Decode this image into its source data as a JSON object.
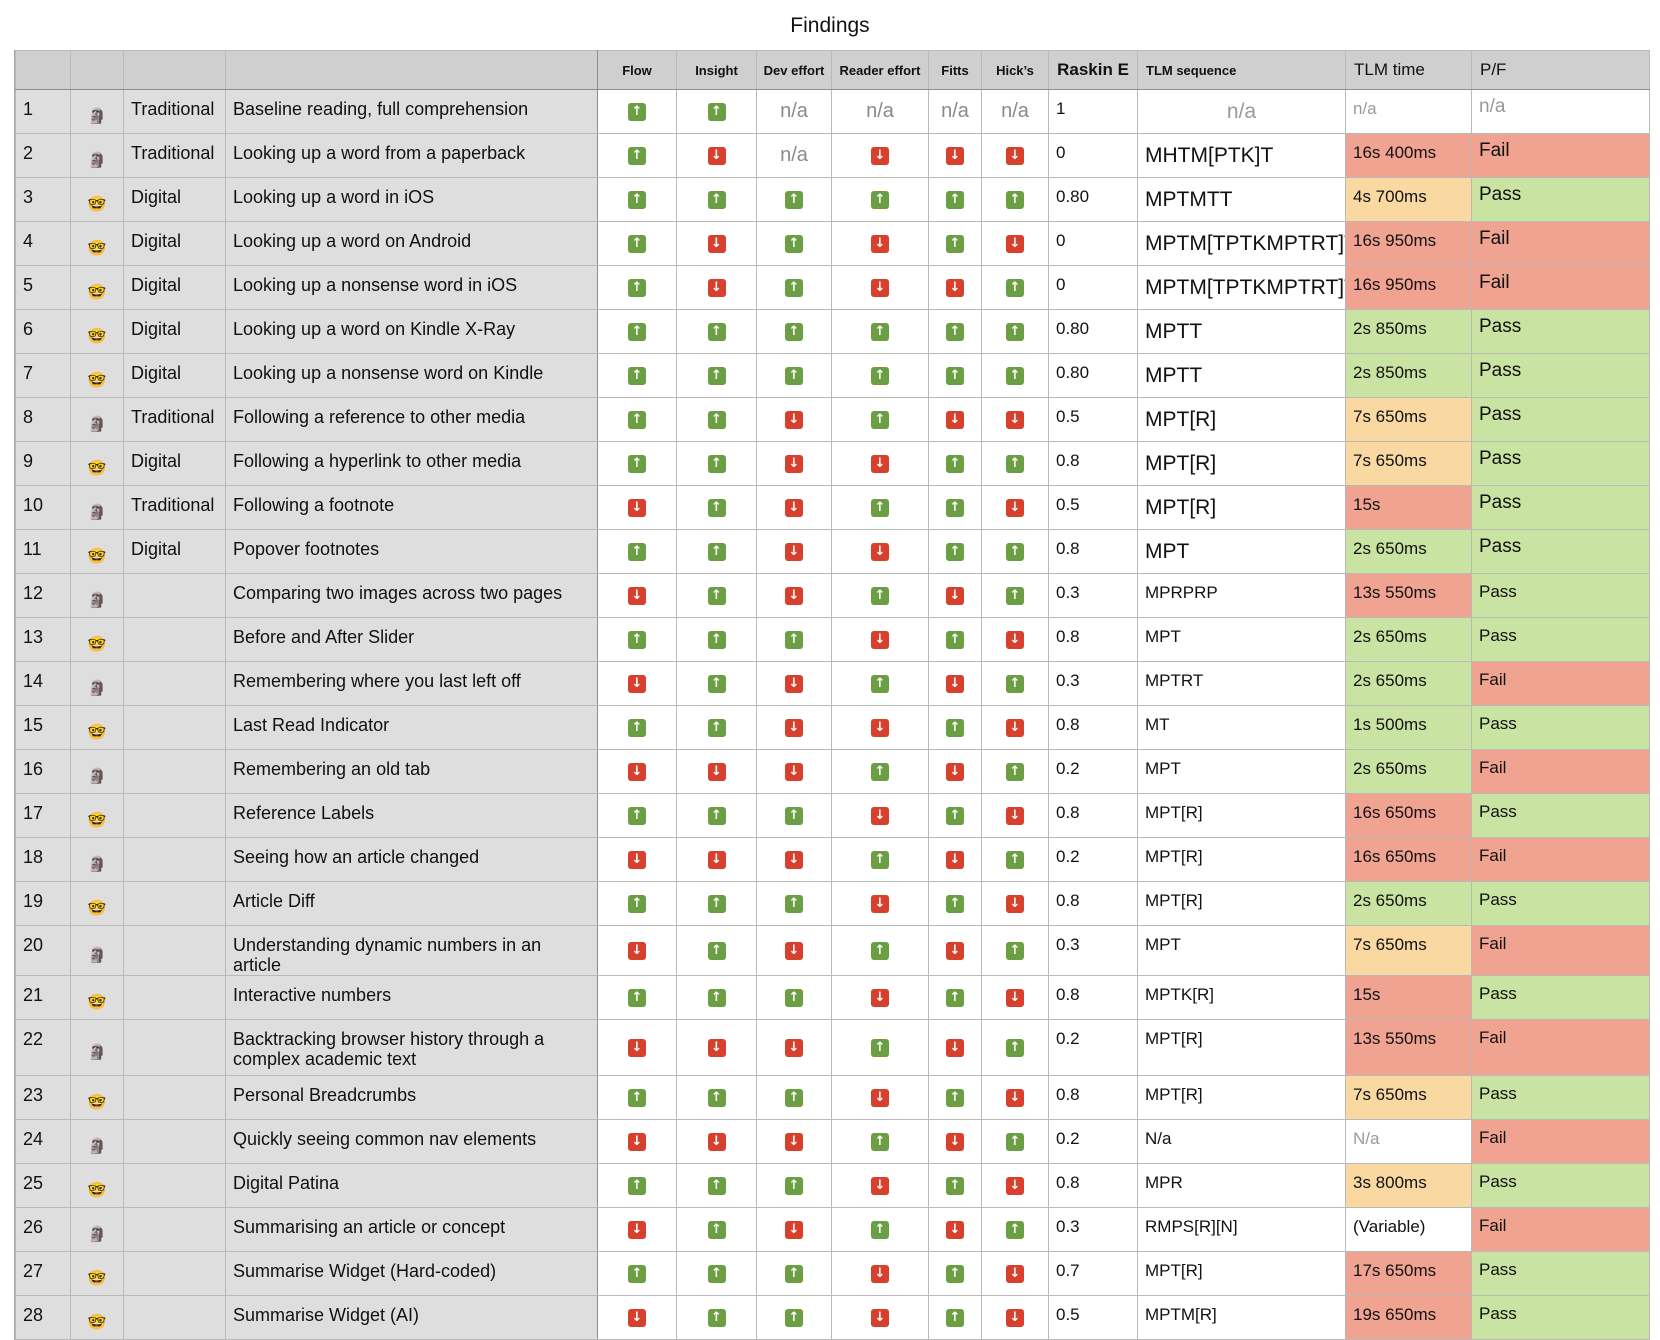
{
  "title": "Findings",
  "headers": {
    "flow": "Flow",
    "insight": "Insight",
    "dev_effort": "Dev effort",
    "reader_effort": "Reader effort",
    "fitts": "Fitts",
    "hicks": "Hick’s",
    "raskin": "Raskin E",
    "tlm_sequence": "TLM sequence",
    "tlm_time": "TLM time",
    "pf": "P/F"
  },
  "avatar_icons": {
    "traditional": "moai-icon",
    "digital": "nerd-face-icon"
  },
  "colors": {
    "up": "#6c9f44",
    "down": "#d8402e",
    "pass_green": "#c8e3a2",
    "fail_red": "#f1a391",
    "warn_orange": "#f9d8a2"
  },
  "rows": [
    {
      "num": "1",
      "avatar": "moai",
      "category": "Traditional",
      "task": "Baseline reading, full comprehension",
      "flow": "up",
      "insight": "up",
      "dev": "n/a",
      "reader": "n/a",
      "fitts": "n/a",
      "hicks": "n/a",
      "raskin": "1",
      "tlm": "n/a",
      "time": "n/a",
      "time_color": "white",
      "pf": "n/a",
      "pf_color": "white",
      "large": true
    },
    {
      "num": "2",
      "avatar": "moai",
      "category": "Traditional",
      "task": "Looking up a word from a paperback",
      "flow": "up",
      "insight": "down",
      "dev": "n/a",
      "reader": "down",
      "fitts": "down",
      "hicks": "down",
      "raskin": "0",
      "tlm": "MHTM[PTK]T",
      "time": "16s 400ms",
      "time_color": "red",
      "pf": "Fail",
      "pf_color": "red",
      "large": true
    },
    {
      "num": "3",
      "avatar": "nerd",
      "category": "Digital",
      "task": "Looking up a word in iOS",
      "flow": "up",
      "insight": "up",
      "dev": "up",
      "reader": "up",
      "fitts": "up",
      "hicks": "up",
      "raskin": "0.80",
      "tlm": "MPTMTT",
      "time": "4s 700ms",
      "time_color": "orange",
      "pf": "Pass",
      "pf_color": "green",
      "large": true
    },
    {
      "num": "4",
      "avatar": "nerd",
      "category": "Digital",
      "task": "Looking up a word on Android",
      "flow": "up",
      "insight": "down",
      "dev": "up",
      "reader": "down",
      "fitts": "up",
      "hicks": "down",
      "raskin": "0",
      "tlm": "MPTM[TPTKMPTRT]T",
      "time": "16s 950ms",
      "time_color": "red",
      "pf": "Fail",
      "pf_color": "red",
      "large": true
    },
    {
      "num": "5",
      "avatar": "nerd",
      "category": "Digital",
      "task": "Looking up a nonsense word in iOS",
      "flow": "up",
      "insight": "down",
      "dev": "up",
      "reader": "down",
      "fitts": "down",
      "hicks": "up",
      "raskin": "0",
      "tlm": "MPTM[TPTKMPTRT]T",
      "time": "16s 950ms",
      "time_color": "red",
      "pf": "Fail",
      "pf_color": "red",
      "large": true
    },
    {
      "num": "6",
      "avatar": "nerd",
      "category": "Digital",
      "task": "Looking up a word on Kindle X-Ray",
      "flow": "up",
      "insight": "up",
      "dev": "up",
      "reader": "up",
      "fitts": "up",
      "hicks": "up",
      "raskin": "0.80",
      "tlm": "MPTT",
      "time": "2s 850ms",
      "time_color": "green",
      "pf": "Pass",
      "pf_color": "green",
      "large": true
    },
    {
      "num": "7",
      "avatar": "nerd",
      "category": "Digital",
      "task": "Looking up a nonsense word on Kindle",
      "flow": "up",
      "insight": "up",
      "dev": "up",
      "reader": "up",
      "fitts": "up",
      "hicks": "up",
      "raskin": "0.80",
      "tlm": "MPTT",
      "time": "2s 850ms",
      "time_color": "green",
      "pf": "Pass",
      "pf_color": "green",
      "large": true
    },
    {
      "num": "8",
      "avatar": "moai",
      "category": "Traditional",
      "task": "Following a reference to other media",
      "flow": "up",
      "insight": "up",
      "dev": "down",
      "reader": "up",
      "fitts": "down",
      "hicks": "down",
      "raskin": "0.5",
      "tlm": "MPT[R]",
      "time": "7s 650ms",
      "time_color": "orange",
      "pf": "Pass",
      "pf_color": "green",
      "large": true
    },
    {
      "num": "9",
      "avatar": "nerd",
      "category": "Digital",
      "task": "Following a hyperlink to other media",
      "flow": "up",
      "insight": "up",
      "dev": "down",
      "reader": "down",
      "fitts": "up",
      "hicks": "up",
      "raskin": "0.8",
      "tlm": "MPT[R]",
      "time": "7s 650ms",
      "time_color": "orange",
      "pf": "Pass",
      "pf_color": "green",
      "large": true
    },
    {
      "num": "10",
      "avatar": "moai",
      "category": "Traditional",
      "task": "Following a footnote",
      "flow": "down",
      "insight": "up",
      "dev": "down",
      "reader": "up",
      "fitts": "up",
      "hicks": "down",
      "raskin": "0.5",
      "tlm": "MPT[R]",
      "time": "15s",
      "time_color": "red",
      "pf": "Pass",
      "pf_color": "green",
      "large": true
    },
    {
      "num": "11",
      "avatar": "nerd",
      "category": "Digital",
      "task": "Popover footnotes",
      "flow": "up",
      "insight": "up",
      "dev": "down",
      "reader": "down",
      "fitts": "up",
      "hicks": "up",
      "raskin": "0.8",
      "tlm": "MPT",
      "time": "2s 650ms",
      "time_color": "green",
      "pf": "Pass",
      "pf_color": "green",
      "large": true
    },
    {
      "num": "12",
      "avatar": "moai",
      "category": "",
      "task": "Comparing two images across two pages",
      "flow": "down",
      "insight": "up",
      "dev": "down",
      "reader": "up",
      "fitts": "down",
      "hicks": "up",
      "raskin": "0.3",
      "tlm": "MPRPRP",
      "time": "13s 550ms",
      "time_color": "red",
      "pf": "Pass",
      "pf_color": "green",
      "large": false
    },
    {
      "num": "13",
      "avatar": "nerd",
      "category": "",
      "task": "Before and After Slider",
      "flow": "up",
      "insight": "up",
      "dev": "up",
      "reader": "down",
      "fitts": "up",
      "hicks": "down",
      "raskin": "0.8",
      "tlm": "MPT",
      "time": "2s 650ms",
      "time_color": "green",
      "pf": "Pass",
      "pf_color": "green",
      "large": false
    },
    {
      "num": "14",
      "avatar": "moai",
      "category": "",
      "task": "Remembering where you last left off",
      "flow": "down",
      "insight": "up",
      "dev": "down",
      "reader": "up",
      "fitts": "down",
      "hicks": "up",
      "raskin": "0.3",
      "tlm": "MPTRT",
      "time": "2s 650ms",
      "time_color": "green",
      "pf": "Fail",
      "pf_color": "red",
      "large": false
    },
    {
      "num": "15",
      "avatar": "nerd",
      "category": "",
      "task": "Last Read Indicator",
      "flow": "up",
      "insight": "up",
      "dev": "down",
      "reader": "down",
      "fitts": "up",
      "hicks": "down",
      "raskin": "0.8",
      "tlm": "MT",
      "time": "1s 500ms",
      "time_color": "green",
      "pf": "Pass",
      "pf_color": "green",
      "large": false
    },
    {
      "num": "16",
      "avatar": "moai",
      "category": "",
      "task": "Remembering an old tab",
      "flow": "down",
      "insight": "down",
      "dev": "down",
      "reader": "up",
      "fitts": "down",
      "hicks": "up",
      "raskin": "0.2",
      "tlm": "MPT",
      "time": "2s 650ms",
      "time_color": "green",
      "pf": "Fail",
      "pf_color": "red",
      "large": false
    },
    {
      "num": "17",
      "avatar": "nerd",
      "category": "",
      "task": "Reference Labels",
      "flow": "up",
      "insight": "up",
      "dev": "up",
      "reader": "down",
      "fitts": "up",
      "hicks": "down",
      "raskin": "0.8",
      "tlm": "MPT[R]",
      "time": "16s 650ms",
      "time_color": "red",
      "pf": "Pass",
      "pf_color": "green",
      "large": false
    },
    {
      "num": "18",
      "avatar": "moai",
      "category": "",
      "task": "Seeing how an article changed",
      "flow": "down",
      "insight": "down",
      "dev": "down",
      "reader": "up",
      "fitts": "down",
      "hicks": "up",
      "raskin": "0.2",
      "tlm": "MPT[R]",
      "time": "16s 650ms",
      "time_color": "red",
      "pf": "Fail",
      "pf_color": "red",
      "large": false
    },
    {
      "num": "19",
      "avatar": "nerd",
      "category": "",
      "task": "Article Diff",
      "flow": "up",
      "insight": "up",
      "dev": "up",
      "reader": "down",
      "fitts": "up",
      "hicks": "down",
      "raskin": "0.8",
      "tlm": "MPT[R]",
      "time": "2s 650ms",
      "time_color": "green",
      "pf": "Pass",
      "pf_color": "green",
      "large": false
    },
    {
      "num": "20",
      "avatar": "moai",
      "category": "",
      "task": "Understanding dynamic numbers in an article",
      "flow": "down",
      "insight": "up",
      "dev": "down",
      "reader": "up",
      "fitts": "down",
      "hicks": "up",
      "raskin": "0.3",
      "tlm": "MPT",
      "time": "7s 650ms",
      "time_color": "orange",
      "pf": "Fail",
      "pf_color": "red",
      "large": false
    },
    {
      "num": "21",
      "avatar": "nerd",
      "category": "",
      "task": "Interactive numbers",
      "flow": "up",
      "insight": "up",
      "dev": "up",
      "reader": "down",
      "fitts": "up",
      "hicks": "down",
      "raskin": "0.8",
      "tlm": "MPTK[R]",
      "time": "15s",
      "time_color": "red",
      "pf": "Pass",
      "pf_color": "green",
      "large": false
    },
    {
      "num": "22",
      "avatar": "moai",
      "category": "",
      "task": "Backtracking browser history through a complex academic text",
      "flow": "down",
      "insight": "down",
      "dev": "down",
      "reader": "up",
      "fitts": "down",
      "hicks": "up",
      "raskin": "0.2",
      "tlm": "MPT[R]",
      "time": "13s 550ms",
      "time_color": "red",
      "pf": "Fail",
      "pf_color": "red",
      "large": false,
      "tall": true
    },
    {
      "num": "23",
      "avatar": "nerd",
      "category": "",
      "task": "Personal Breadcrumbs",
      "flow": "up",
      "insight": "up",
      "dev": "up",
      "reader": "down",
      "fitts": "up",
      "hicks": "down",
      "raskin": "0.8",
      "tlm": "MPT[R]",
      "time": "7s 650ms",
      "time_color": "orange",
      "pf": "Pass",
      "pf_color": "green",
      "large": false
    },
    {
      "num": "24",
      "avatar": "moai",
      "category": "",
      "task": "Quickly seeing common nav elements",
      "flow": "down",
      "insight": "down",
      "dev": "down",
      "reader": "up",
      "fitts": "down",
      "hicks": "up",
      "raskin": "0.2",
      "tlm": "N/a",
      "time": "N/a",
      "time_color": "white",
      "pf": "Fail",
      "pf_color": "red",
      "large": false
    },
    {
      "num": "25",
      "avatar": "nerd",
      "category": "",
      "task": "Digital Patina",
      "flow": "up",
      "insight": "up",
      "dev": "up",
      "reader": "down",
      "fitts": "up",
      "hicks": "down",
      "raskin": "0.8",
      "tlm": "MPR",
      "time": "3s 800ms",
      "time_color": "orange",
      "pf": "Pass",
      "pf_color": "green",
      "large": false
    },
    {
      "num": "26",
      "avatar": "moai",
      "category": "",
      "task": "Summarising an article or concept",
      "flow": "down",
      "insight": "up",
      "dev": "down",
      "reader": "up",
      "fitts": "down",
      "hicks": "up",
      "raskin": "0.3",
      "tlm": "RMPS[R][N]",
      "time": "(Variable)",
      "time_color": "white",
      "pf": "Fail",
      "pf_color": "red",
      "large": false
    },
    {
      "num": "27",
      "avatar": "nerd",
      "category": "",
      "task": "Summarise Widget (Hard-coded)",
      "flow": "up",
      "insight": "up",
      "dev": "up",
      "reader": "down",
      "fitts": "up",
      "hicks": "down",
      "raskin": "0.7",
      "tlm": "MPT[R]",
      "time": "17s 650ms",
      "time_color": "red",
      "pf": "Pass",
      "pf_color": "green",
      "large": false
    },
    {
      "num": "28",
      "avatar": "nerd",
      "category": "",
      "task": "Summarise Widget (AI)",
      "flow": "down",
      "insight": "up",
      "dev": "up",
      "reader": "down",
      "fitts": "up",
      "hicks": "down",
      "raskin": "0.5",
      "tlm": "MPTM[R]",
      "time": "19s 650ms",
      "time_color": "red",
      "pf": "Pass",
      "pf_color": "green",
      "large": false
    }
  ]
}
